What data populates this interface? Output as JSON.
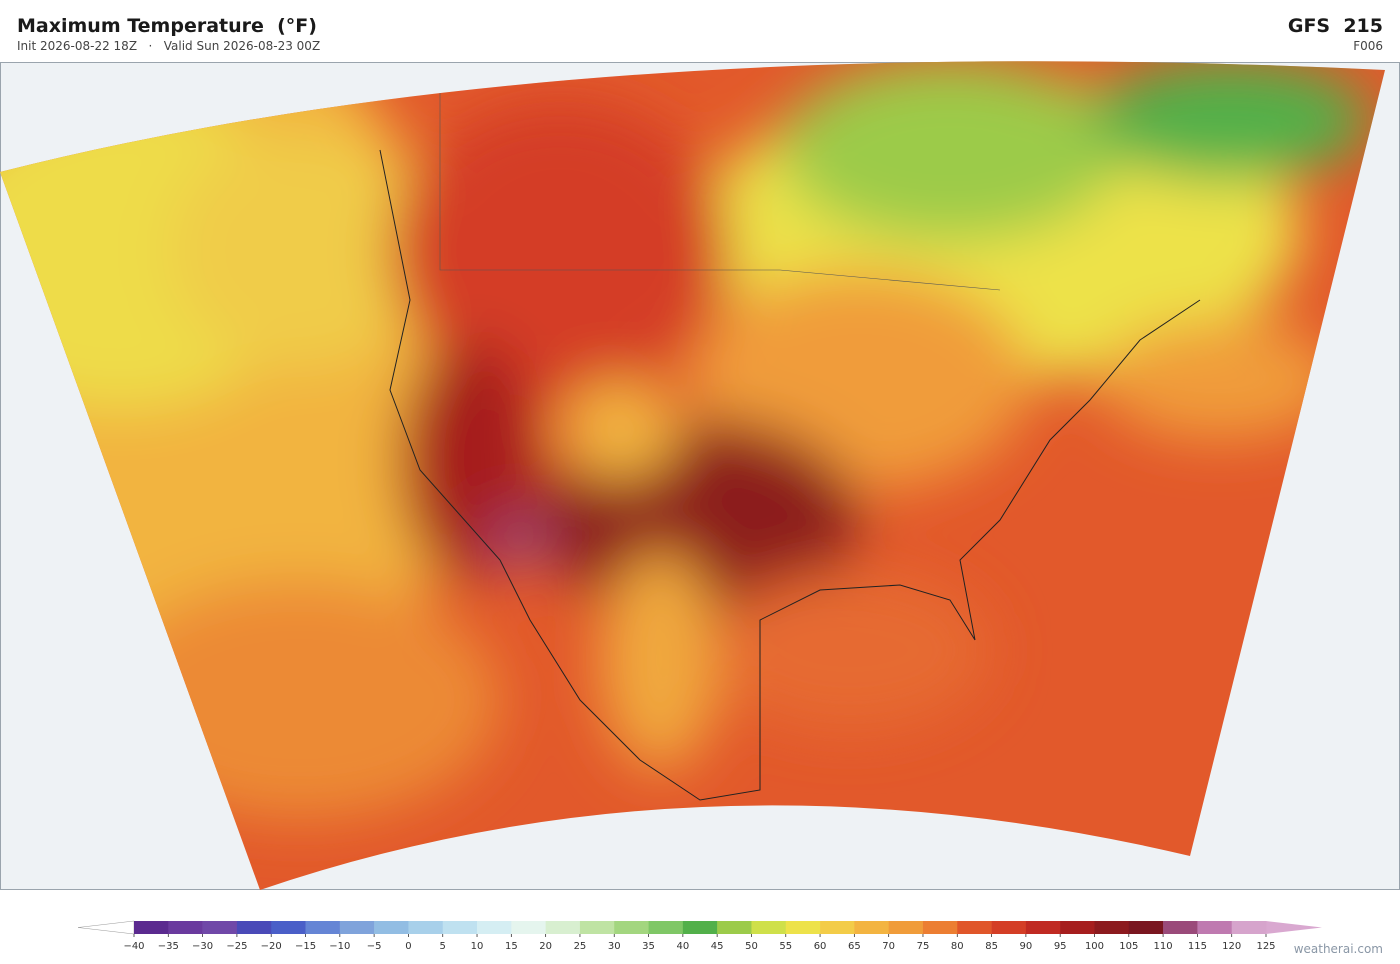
{
  "header": {
    "title": "Maximum Temperature  (°F)",
    "subtitle": "Init 2026-08-22 18Z   ·   Valid Sun 2026-08-23 00Z",
    "model": "GFS  215",
    "forecast_hour": "F006"
  },
  "colorbar": {
    "ticks": [
      {
        "value": -40,
        "label": "−40"
      },
      {
        "value": -35,
        "label": "−35"
      },
      {
        "value": -30,
        "label": "−30"
      },
      {
        "value": -25,
        "label": "−25"
      },
      {
        "value": -20,
        "label": "−20"
      },
      {
        "value": -15,
        "label": "−15"
      },
      {
        "value": -10,
        "label": "−10"
      },
      {
        "value": -5,
        "label": "−5"
      },
      0,
      5,
      10,
      15,
      20,
      25,
      30,
      35,
      40,
      45,
      50,
      55,
      60,
      65,
      70,
      75,
      80,
      85,
      90,
      95,
      100,
      105,
      110,
      115,
      120,
      125
    ],
    "colors": [
      "#5b2a8f",
      "#6a3a9e",
      "#7048a8",
      "#4a4ab8",
      "#4a5fc8",
      "#6585d5",
      "#7fa3db",
      "#92bde3",
      "#a8d0ea",
      "#bfe1f0",
      "#d5eef3",
      "#e5f5ee",
      "#d8efd0",
      "#bfe3a3",
      "#a3d67f",
      "#7fc766",
      "#52b04a",
      "#9ccb4a",
      "#cfe04a",
      "#ede24a",
      "#f3cc48",
      "#f3b441",
      "#f09c3a",
      "#ec7e32",
      "#e0562a",
      "#d43e26",
      "#c02a22",
      "#a61e1e",
      "#8c1a1e",
      "#7a1620",
      "#9a4a7a",
      "#bf7ab0",
      "#d6a4cc"
    ],
    "under_color": "#ffffff",
    "over_color": "#d9a8d0"
  },
  "credit": "weatherai.com"
}
